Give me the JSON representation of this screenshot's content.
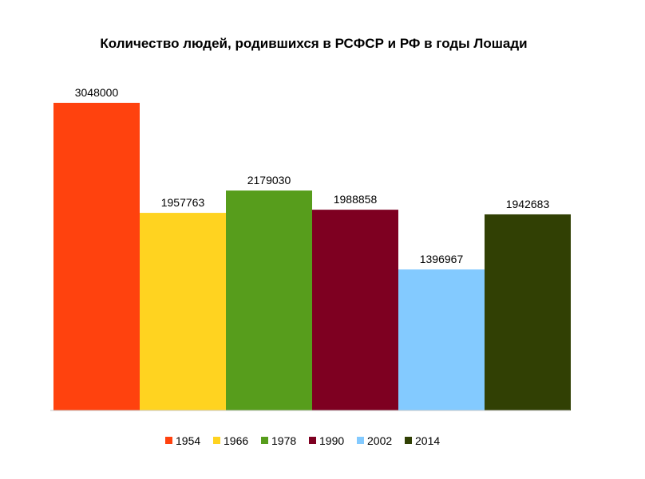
{
  "chart_data": {
    "type": "bar",
    "title": "Количество людей, родившихся в РСФСР и РФ в годы Лошади",
    "xlabel": "",
    "ylabel": "",
    "ylim": [
      0,
      3048000
    ],
    "grid": false,
    "legend_position": "bottom",
    "categories": [
      "1954",
      "1966",
      "1978",
      "1990",
      "2002",
      "2014"
    ],
    "values": [
      3048000,
      1957763,
      2179030,
      1988858,
      1396967,
      1942683
    ],
    "value_labels": [
      "3048000",
      "1957763",
      "2179030",
      "1988858",
      "1396967",
      "1942683"
    ],
    "colors": [
      "#FF420E",
      "#FFD320",
      "#579D1C",
      "#7E0021",
      "#83CAFF",
      "#314004"
    ]
  }
}
